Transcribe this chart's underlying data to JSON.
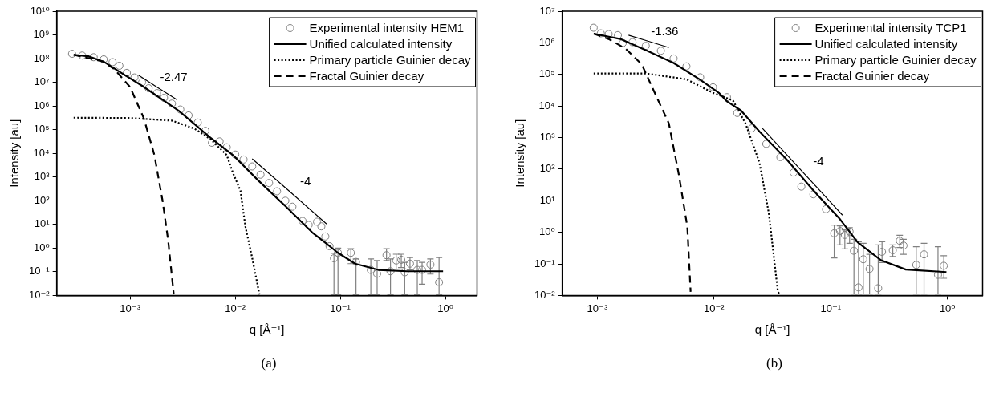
{
  "chart_data": [
    {
      "type": "line",
      "xlabel": "q [Å⁻¹]",
      "ylabel": "Intensity [au]",
      "log": "xy",
      "grid": false,
      "legend": "top right",
      "xlim": [
        0.0002,
        2
      ],
      "ylim": [
        0.01,
        10000000000
      ],
      "xticks": [
        {
          "value": 0.001,
          "label": "10⁻³"
        },
        {
          "value": 0.01,
          "label": "10⁻²"
        },
        {
          "value": 0.1,
          "label": "10⁻¹"
        },
        {
          "value": 1,
          "label": "10⁰"
        }
      ],
      "yticks": [
        {
          "value": 0.01,
          "label": "10⁻²"
        },
        {
          "value": 0.1,
          "label": "10⁻¹"
        },
        {
          "value": 1,
          "label": "10⁰"
        },
        {
          "value": 10,
          "label": "10¹"
        },
        {
          "value": 100,
          "label": "10²"
        },
        {
          "value": 1000,
          "label": "10³"
        },
        {
          "value": 10000,
          "label": "10⁴"
        },
        {
          "value": 100000,
          "label": "10⁵"
        },
        {
          "value": 1000000,
          "label": "10⁶"
        },
        {
          "value": 10000000,
          "label": "10⁷"
        },
        {
          "value": 100000000,
          "label": "10⁸"
        },
        {
          "value": 1000000000,
          "label": "10⁹"
        },
        {
          "value": 10000000000,
          "label": "10¹⁰"
        }
      ],
      "series": [
        {
          "name": "Experimental intensity HEM1",
          "type": "scatter",
          "marker": "circle",
          "color": "#808080",
          "x": [
            0.00028,
            0.00035,
            0.00045,
            0.00056,
            0.00068,
            0.00079,
            0.00093,
            0.0011,
            0.0013,
            0.0015,
            0.0018,
            0.0021,
            0.0025,
            0.003,
            0.0036,
            0.0044,
            0.0052,
            0.006,
            0.0071,
            0.0083,
            0.01,
            0.012,
            0.0145,
            0.0174,
            0.021,
            0.025,
            0.03,
            0.035,
            0.0437,
            0.05,
            0.06,
            0.066,
            0.072,
            0.079,
            0.087,
            0.095,
            0.126,
            0.141,
            0.195,
            0.224,
            0.275,
            0.3,
            0.34,
            0.38,
            0.41,
            0.46,
            0.54,
            0.6,
            0.72,
            0.87
          ],
          "values": [
            160000000,
            135000000,
            115000000,
            93000000,
            71000000,
            50000000,
            25000000,
            16000000,
            10000000,
            5600000,
            3500000,
            2200000,
            1260000,
            710000,
            400000,
            200000,
            89000,
            28000,
            32000,
            18000,
            8900,
            5500,
            2800,
            1260,
            560,
            250,
            100,
            56,
            14,
            9.5,
            13,
            8.3,
            3.1,
            1.2,
            0.37,
            0.63,
            0.63,
            0.26,
            0.12,
            0.083,
            0.5,
            0.105,
            0.3,
            0.32,
            0.095,
            0.22,
            0.12,
            0.12,
            0.2,
            0.036
          ],
          "errors": [
            null,
            null,
            null,
            null,
            null,
            null,
            null,
            null,
            null,
            null,
            null,
            null,
            null,
            null,
            null,
            null,
            null,
            null,
            null,
            null,
            null,
            null,
            null,
            null,
            null,
            null,
            null,
            null,
            null,
            null,
            null,
            null,
            null,
            null,
            [
              0.011,
              0.6
            ],
            [
              0.011,
              1.0
            ],
            [
              0.22,
              0.95
            ],
            [
              0.011,
              0.35
            ],
            [
              0.011,
              0.35
            ],
            [
              0.011,
              0.3
            ],
            [
              0.3,
              0.95
            ],
            [
              0.011,
              0.35
            ],
            [
              0.13,
              0.55
            ],
            [
              0.15,
              0.55
            ],
            [
              0.011,
              0.25
            ],
            [
              0.12,
              0.4
            ],
            [
              0.011,
              0.3
            ],
            [
              0.03,
              0.25
            ],
            [
              0.08,
              0.35
            ],
            [
              0.011,
              0.4
            ]
          ]
        },
        {
          "name": "Unified calculated intensity",
          "line_style": "solid",
          "color": "#000000",
          "x": [
            0.00029,
            0.0004,
            0.00056,
            0.00079,
            0.0013,
            0.0029,
            0.0058,
            0.0095,
            0.0166,
            0.03,
            0.054,
            0.072,
            0.095,
            0.138,
            0.23,
            0.43,
            0.95
          ],
          "values": [
            145000000,
            126000000,
            74000000,
            28000000,
            7100000,
            630000,
            46000,
            8500,
            710,
            59,
            4.6,
            1.7,
            0.63,
            0.22,
            0.12,
            0.105,
            0.105
          ]
        },
        {
          "name": "Primary particle Guinier decay",
          "line_style": "dotted",
          "color": "#000000",
          "x": [
            0.00029,
            0.001,
            0.0025,
            0.0041,
            0.0058,
            0.0083,
            0.0095,
            0.0112,
            0.0125,
            0.0145,
            0.017
          ],
          "values": [
            320000,
            310000,
            240000,
            110000,
            40000,
            8500,
            1500,
            270,
            8,
            0.38,
            0.011
          ]
        },
        {
          "name": "Fractal Guinier decay",
          "line_style": "dashed",
          "color": "#000000",
          "x": [
            0.00029,
            0.00056,
            0.00071,
            0.001,
            0.00135,
            0.0017,
            0.00204,
            0.0023,
            0.0026
          ],
          "values": [
            145000000,
            74000000,
            35000000,
            6200000,
            300000,
            8500,
            93,
            2.1,
            0.011
          ]
        },
        {
          "line_style": "solid",
          "color": "#000000",
          "x": [
            0.0012,
            0.00183,
            0.0028
          ],
          "values": [
            20000000,
            6000000,
            1800000
          ]
        },
        {
          "line_style": "solid",
          "color": "#000000",
          "x": [
            0.0145,
            0.0328,
            0.074
          ],
          "values": [
            5900,
            249,
            10.5
          ]
        }
      ],
      "annotations": [
        {
          "text": "-2.47",
          "x": 0.00183,
          "y": 6000000
        },
        {
          "text": "-4",
          "x": 0.0328,
          "y": 249
        },
        "(a)"
      ]
    },
    {
      "type": "line",
      "xlabel": "q [Å⁻¹]",
      "ylabel": "Intensity [au]",
      "log": "xy",
      "grid": false,
      "legend": "top right",
      "xlim": [
        0.0005,
        2
      ],
      "ylim": [
        0.01,
        10000000
      ],
      "xticks": [
        {
          "value": 0.001,
          "label": "10⁻³"
        },
        {
          "value": 0.01,
          "label": "10⁻²"
        },
        {
          "value": 0.1,
          "label": "10⁻¹"
        },
        {
          "value": 1,
          "label": "10⁰"
        }
      ],
      "yticks": [
        {
          "value": 0.01,
          "label": "10⁻²"
        },
        {
          "value": 0.1,
          "label": "10⁻¹"
        },
        {
          "value": 1,
          "label": "10⁰"
        },
        {
          "value": 10,
          "label": "10¹"
        },
        {
          "value": 100,
          "label": "10²"
        },
        {
          "value": 1000,
          "label": "10³"
        },
        {
          "value": 10000,
          "label": "10⁴"
        },
        {
          "value": 100000,
          "label": "10⁵"
        },
        {
          "value": 1000000,
          "label": "10⁶"
        },
        {
          "value": 10000000,
          "label": "10⁷"
        }
      ],
      "series": [
        {
          "name": "Experimental intensity TCP1",
          "type": "scatter",
          "marker": "circle",
          "color": "#808080",
          "x": [
            0.00093,
            0.00107,
            0.00125,
            0.0015,
            0.00165,
            0.002,
            0.0026,
            0.0035,
            0.0045,
            0.0058,
            0.0076,
            0.0098,
            0.0129,
            0.0158,
            0.021,
            0.028,
            0.037,
            0.048,
            0.056,
            0.071,
            0.091,
            0.107,
            0.12,
            0.132,
            0.145,
            0.158,
            0.173,
            0.19,
            0.215,
            0.255,
            0.275,
            0.34,
            0.39,
            0.42,
            0.54,
            0.63,
            0.83,
            0.93
          ],
          "values": [
            3000000,
            2000000,
            1900000,
            1750000,
            980000,
            1050000,
            800000,
            560000,
            320000,
            180000,
            81000,
            39000,
            19000,
            6000,
            1950,
            630,
            240,
            78,
            28,
            16,
            5.4,
            0.93,
            1.1,
            0.83,
            1.05,
            0.26,
            0.018,
            0.14,
            0.069,
            0.017,
            0.24,
            0.27,
            0.54,
            0.38,
            0.093,
            0.2,
            0.045,
            0.087
          ],
          "errors": [
            null,
            null,
            null,
            null,
            null,
            null,
            null,
            null,
            null,
            null,
            null,
            null,
            null,
            null,
            null,
            null,
            null,
            null,
            null,
            null,
            null,
            [
              0.155,
              1.7
            ],
            [
              0.4,
              1.6
            ],
            [
              0.3,
              1.2
            ],
            [
              0.45,
              1.4
            ],
            [
              0.011,
              0.6
            ],
            [
              0.011,
              0.5
            ],
            [
              0.011,
              0.45
            ],
            [
              0.011,
              0.2
            ],
            [
              0.011,
              0.4
            ],
            [
              0.11,
              0.5
            ],
            [
              0.17,
              0.4
            ],
            [
              0.33,
              0.8
            ],
            [
              0.2,
              0.6
            ],
            [
              0.011,
              0.35
            ],
            [
              0.011,
              0.45
            ],
            [
              0.011,
              0.35
            ],
            [
              0.035,
              0.18
            ]
          ]
        },
        {
          "name": "Unified calculated intensity",
          "line_style": "solid",
          "color": "#000000",
          "x": [
            0.00093,
            0.0016,
            0.0026,
            0.0045,
            0.0076,
            0.011,
            0.0129,
            0.017,
            0.0245,
            0.042,
            0.071,
            0.12,
            0.17,
            0.27,
            0.44,
            0.98
          ],
          "values": [
            1950000,
            1300000,
            590000,
            230000,
            68000,
            26000,
            14000,
            7200,
            1550,
            200,
            21,
            2.6,
            0.48,
            0.13,
            0.066,
            0.055
          ]
        },
        {
          "name": "Primary particle Guinier decay",
          "line_style": "dotted",
          "color": "#000000",
          "x": [
            0.00093,
            0.0026,
            0.0058,
            0.0098,
            0.0145,
            0.0186,
            0.0245,
            0.0295,
            0.035,
            0.036
          ],
          "values": [
            107000,
            107000,
            70000,
            26000,
            15000,
            2800,
            160,
            3.9,
            0.016,
            0.011
          ]
        },
        {
          "name": "Fractal Guinier decay",
          "line_style": "dashed",
          "color": "#000000",
          "x": [
            0.00093,
            0.00126,
            0.00174,
            0.0024,
            0.00295,
            0.0041,
            0.005,
            0.0059,
            0.0063
          ],
          "values": [
            1950000,
            1300000,
            660000,
            210000,
            39000,
            2800,
            65,
            1.5,
            0.013
          ]
        },
        {
          "line_style": "solid",
          "color": "#000000",
          "x": [
            0.00185,
            0.00275,
            0.0041
          ],
          "values": [
            1750000,
            1115000,
            710000
          ]
        },
        {
          "line_style": "solid",
          "color": "#000000",
          "x": [
            0.026,
            0.0572,
            0.126
          ],
          "values": [
            1950,
            82.6,
            3.5
          ]
        }
      ],
      "annotations": [
        {
          "text": "-1.36",
          "x": 0.00275,
          "y": 1115000
        },
        {
          "text": "-4",
          "x": 0.0572,
          "y": 82.6
        },
        "(b)"
      ]
    }
  ]
}
